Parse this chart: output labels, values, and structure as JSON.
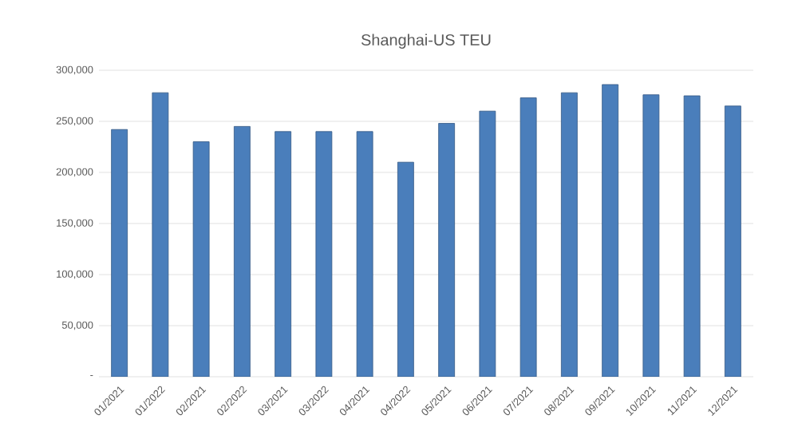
{
  "chart_data": {
    "type": "bar",
    "title": "Shanghai-US TEU",
    "categories": [
      "01/2021",
      "01/2022",
      "02/2021",
      "02/2022",
      "03/2021",
      "03/2022",
      "04/2021",
      "04/2022",
      "05/2021",
      "06/2021",
      "07/2021",
      "08/2021",
      "09/2021",
      "10/2021",
      "11/2021",
      "12/2021"
    ],
    "values": [
      242000,
      278000,
      230000,
      245000,
      240000,
      240000,
      240000,
      210000,
      248000,
      260000,
      273000,
      278000,
      286000,
      276000,
      275000,
      265000
    ],
    "color": "#4a7ebb",
    "ylim": [
      0,
      300000
    ],
    "yticks": [
      {
        "value": 0,
        "label": "-"
      },
      {
        "value": 50000,
        "label": "50,000"
      },
      {
        "value": 100000,
        "label": "100,000"
      },
      {
        "value": 150000,
        "label": "150,000"
      },
      {
        "value": 200000,
        "label": "200,000"
      },
      {
        "value": 250000,
        "label": "250,000"
      },
      {
        "value": 300000,
        "label": "300,000"
      }
    ],
    "grid": "y"
  }
}
